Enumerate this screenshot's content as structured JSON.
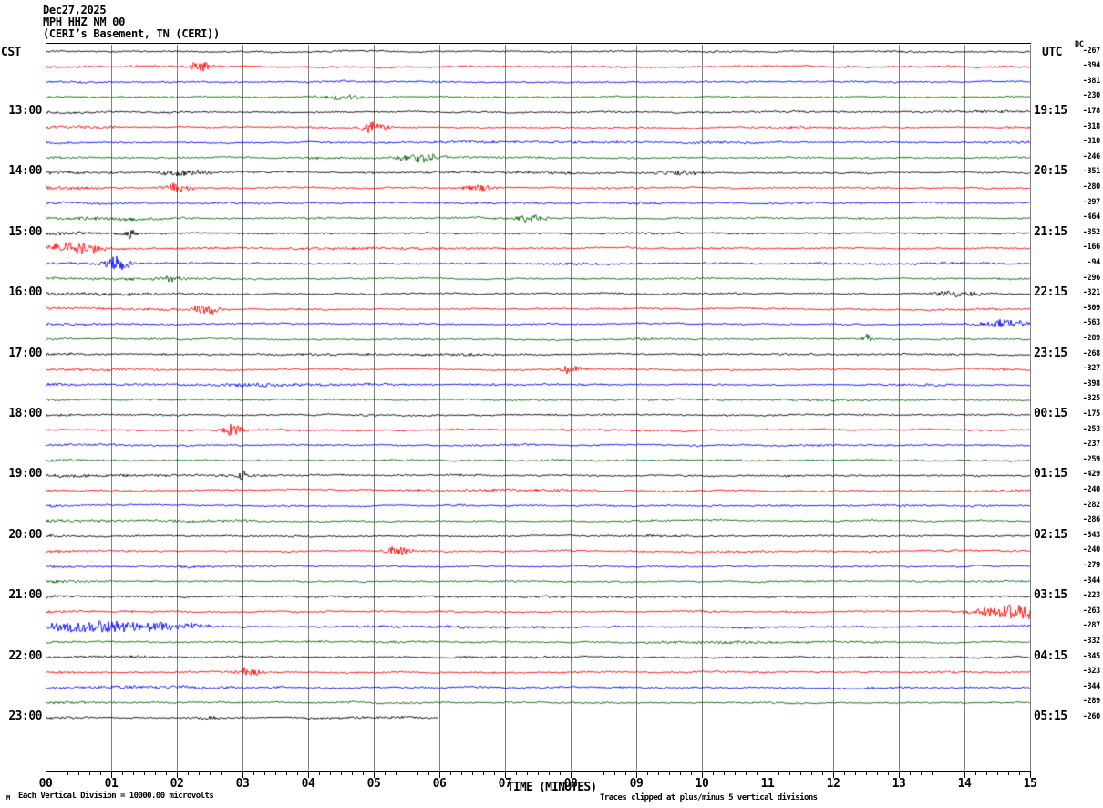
{
  "title": {
    "date": "Dec27,2025",
    "station": "MPH HHZ NM 00",
    "location": "(CERI’s Basement, TN (CERI))"
  },
  "header": {
    "left_tz": "CST",
    "right_tz": "UTC",
    "dc_label": "DC"
  },
  "x_axis": {
    "label": "TIME (MINUTES)",
    "ticks": [
      "00",
      "01",
      "02",
      "03",
      "04",
      "05",
      "06",
      "07",
      "08",
      "09",
      "10",
      "11",
      "12",
      "13",
      "14",
      "15"
    ],
    "minor_ticks_per_gap": 5
  },
  "footer": {
    "scale_note": "Each Vertical Division = 10000.00 microvolts",
    "clip_note": "Traces clipped at plus/minus 5 vertical divisions",
    "corner_mark": "M"
  },
  "chart_data": {
    "type": "line",
    "subtype": "seismic-helicorder",
    "x_range_minutes": [
      0,
      15
    ],
    "row_duration_minutes": 15,
    "rows_per_hour": 4,
    "trace_color_cycle": [
      "#000000",
      "#ff0000",
      "#0000ff",
      "#006400"
    ],
    "grid_color": "#808080",
    "last_row_end_minute": 6,
    "noise_seed": 1337,
    "rows": [
      {
        "cst": "",
        "utc": "",
        "dc": -267
      },
      {
        "cst": "",
        "utc": "",
        "dc": -394
      },
      {
        "cst": "",
        "utc": "",
        "dc": -381
      },
      {
        "cst": "",
        "utc": "",
        "dc": -230
      },
      {
        "cst": "13:00",
        "utc": "19:15",
        "dc": -178
      },
      {
        "cst": "",
        "utc": "",
        "dc": -318
      },
      {
        "cst": "",
        "utc": "",
        "dc": -310
      },
      {
        "cst": "",
        "utc": "",
        "dc": -246
      },
      {
        "cst": "14:00",
        "utc": "20:15",
        "dc": -351
      },
      {
        "cst": "",
        "utc": "",
        "dc": -280
      },
      {
        "cst": "",
        "utc": "",
        "dc": -297
      },
      {
        "cst": "",
        "utc": "",
        "dc": -464
      },
      {
        "cst": "15:00",
        "utc": "21:15",
        "dc": -352
      },
      {
        "cst": "",
        "utc": "",
        "dc": -166
      },
      {
        "cst": "",
        "utc": "",
        "dc": -94
      },
      {
        "cst": "",
        "utc": "",
        "dc": -296
      },
      {
        "cst": "16:00",
        "utc": "22:15",
        "dc": -321
      },
      {
        "cst": "",
        "utc": "",
        "dc": -309
      },
      {
        "cst": "",
        "utc": "",
        "dc": -563
      },
      {
        "cst": "",
        "utc": "",
        "dc": -289
      },
      {
        "cst": "17:00",
        "utc": "23:15",
        "dc": -268
      },
      {
        "cst": "",
        "utc": "",
        "dc": -327
      },
      {
        "cst": "",
        "utc": "",
        "dc": -398
      },
      {
        "cst": "",
        "utc": "",
        "dc": -325
      },
      {
        "cst": "18:00",
        "utc": "00:15",
        "dc": -175
      },
      {
        "cst": "",
        "utc": "",
        "dc": -253
      },
      {
        "cst": "",
        "utc": "",
        "dc": -237
      },
      {
        "cst": "",
        "utc": "",
        "dc": -259
      },
      {
        "cst": "19:00",
        "utc": "01:15",
        "dc": -429
      },
      {
        "cst": "",
        "utc": "",
        "dc": -240
      },
      {
        "cst": "",
        "utc": "",
        "dc": -282
      },
      {
        "cst": "",
        "utc": "",
        "dc": -286
      },
      {
        "cst": "20:00",
        "utc": "02:15",
        "dc": -343
      },
      {
        "cst": "",
        "utc": "",
        "dc": -240
      },
      {
        "cst": "",
        "utc": "",
        "dc": -279
      },
      {
        "cst": "",
        "utc": "",
        "dc": -344
      },
      {
        "cst": "21:00",
        "utc": "03:15",
        "dc": -223
      },
      {
        "cst": "",
        "utc": "",
        "dc": -263
      },
      {
        "cst": "",
        "utc": "",
        "dc": -287
      },
      {
        "cst": "",
        "utc": "",
        "dc": -332
      },
      {
        "cst": "22:00",
        "utc": "04:15",
        "dc": -345
      },
      {
        "cst": "",
        "utc": "",
        "dc": -323
      },
      {
        "cst": "",
        "utc": "",
        "dc": -344
      },
      {
        "cst": "",
        "utc": "",
        "dc": -289
      },
      {
        "cst": "23:00",
        "utc": "05:15",
        "dc": -260
      }
    ],
    "bursts": [
      {
        "row": 2,
        "m": 2.35,
        "a": 6,
        "w": 0.12
      },
      {
        "row": 4,
        "m": 4.6,
        "a": 3,
        "w": 0.2
      },
      {
        "row": 6,
        "m": 5.0,
        "a": 7,
        "w": 0.15
      },
      {
        "row": 8,
        "m": 5.7,
        "a": 4.5,
        "w": 0.25
      },
      {
        "row": 9,
        "m": 2.1,
        "a": 3.5,
        "w": 0.3
      },
      {
        "row": 9,
        "m": 9.6,
        "a": 3,
        "w": 0.3
      },
      {
        "row": 10,
        "m": 2.0,
        "a": 7,
        "w": 0.15
      },
      {
        "row": 10,
        "m": 6.6,
        "a": 3.5,
        "w": 0.2
      },
      {
        "row": 12,
        "m": 7.4,
        "a": 4,
        "w": 0.2
      },
      {
        "row": 13,
        "m": 1.3,
        "a": 6,
        "w": 0.04
      },
      {
        "row": 14,
        "m": 0.45,
        "a": 5.5,
        "w": 0.35
      },
      {
        "row": 15,
        "m": 1.1,
        "a": 8,
        "w": 0.15
      },
      {
        "row": 16,
        "m": 1.95,
        "a": 3.5,
        "w": 0.15
      },
      {
        "row": 17,
        "m": 13.9,
        "a": 3.5,
        "w": 0.3
      },
      {
        "row": 18,
        "m": 2.45,
        "a": 6,
        "w": 0.15
      },
      {
        "row": 19,
        "m": 14.6,
        "a": 4,
        "w": 0.3
      },
      {
        "row": 20,
        "m": 12.5,
        "a": 7,
        "w": 0.05
      },
      {
        "row": 22,
        "m": 8.0,
        "a": 5,
        "w": 0.12
      },
      {
        "row": 26,
        "m": 2.85,
        "a": 7,
        "w": 0.12
      },
      {
        "row": 29,
        "m": 3.0,
        "a": 5,
        "w": 0.06
      },
      {
        "row": 34,
        "m": 5.35,
        "a": 5,
        "w": 0.15
      },
      {
        "row": 38,
        "m": 14.8,
        "a": 8,
        "w": 0.45
      },
      {
        "row": 39,
        "m": 0.75,
        "a": 7,
        "w": 0.55
      },
      {
        "row": 39,
        "m": 1.8,
        "a": 4,
        "w": 0.5
      },
      {
        "row": 42,
        "m": 3.1,
        "a": 5,
        "w": 0.15
      },
      {
        "row": 45,
        "m": 2.5,
        "a": 1.5,
        "w": 0.3
      }
    ]
  }
}
